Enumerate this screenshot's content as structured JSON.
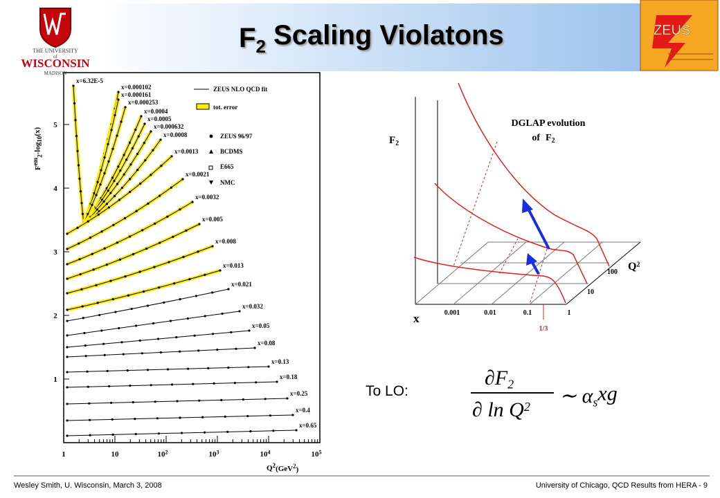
{
  "header": {
    "title": [
      "F",
      "2",
      " Scaling Violatons"
    ],
    "university": [
      "THE UNIVERSITY",
      "of",
      "WISCONSIN",
      "MADISON"
    ],
    "zeus": "ZEUS"
  },
  "left_plot": {
    "y_label": [
      "F",
      "em",
      "2",
      "-log",
      "10",
      "(x)"
    ],
    "x_label": [
      "Q",
      "2",
      "(GeV",
      "2",
      ")"
    ],
    "yticks": [
      "1",
      "2",
      "3",
      "4",
      "5"
    ],
    "xticks": [
      {
        "base": "1"
      },
      {
        "base": "10"
      },
      {
        "base": "10",
        "exp": "2"
      },
      {
        "base": "10",
        "exp": "3"
      },
      {
        "base": "10",
        "exp": "4"
      },
      {
        "base": "10",
        "exp": "5"
      }
    ],
    "bins": [
      "x=6.32E-5",
      "x=0.000102",
      "x=0.000161",
      "x=0.000253",
      "x=0.0004",
      "x=0.0005",
      "x=0.000632",
      "x=0.0008",
      "x=0.0013",
      "x=0.0021",
      "x=0.0032",
      "x=0.005",
      "x=0.008",
      "x=0.013",
      "x=0.021",
      "x=0.032",
      "x=0.05",
      "x=0.08",
      "x=0.13",
      "x=0.18",
      "x=0.25",
      "x=0.4",
      "x=0.65"
    ],
    "legend": [
      "ZEUS NLO QCD fit",
      "tot. error",
      "ZEUS 96/97",
      "BCDMS",
      "E665",
      "NMC"
    ]
  },
  "diagram": {
    "title": [
      "DGLAP evolution",
      "of",
      "F",
      "2"
    ],
    "f2_axis": [
      "F",
      "2"
    ],
    "x_axis": "x",
    "q2_axis": [
      "Q",
      "2"
    ],
    "x_ticks": [
      "0.001",
      "0.01",
      "0.1",
      "1"
    ],
    "x_mark": "1/3",
    "q2_ticks": [
      "10",
      "100"
    ]
  },
  "formula": {
    "lead": "To LO:",
    "numerator": [
      "∂F",
      "2"
    ],
    "denominator": [
      "∂ ln Q",
      "2"
    ],
    "rhs": [
      "∼ α",
      "s",
      "xg"
    ]
  },
  "footer": {
    "left": "Wesley Smith, U. Wisconsin, March 3, 2008",
    "right": "University of Chicago, QCD Results from HERA -  9"
  }
}
